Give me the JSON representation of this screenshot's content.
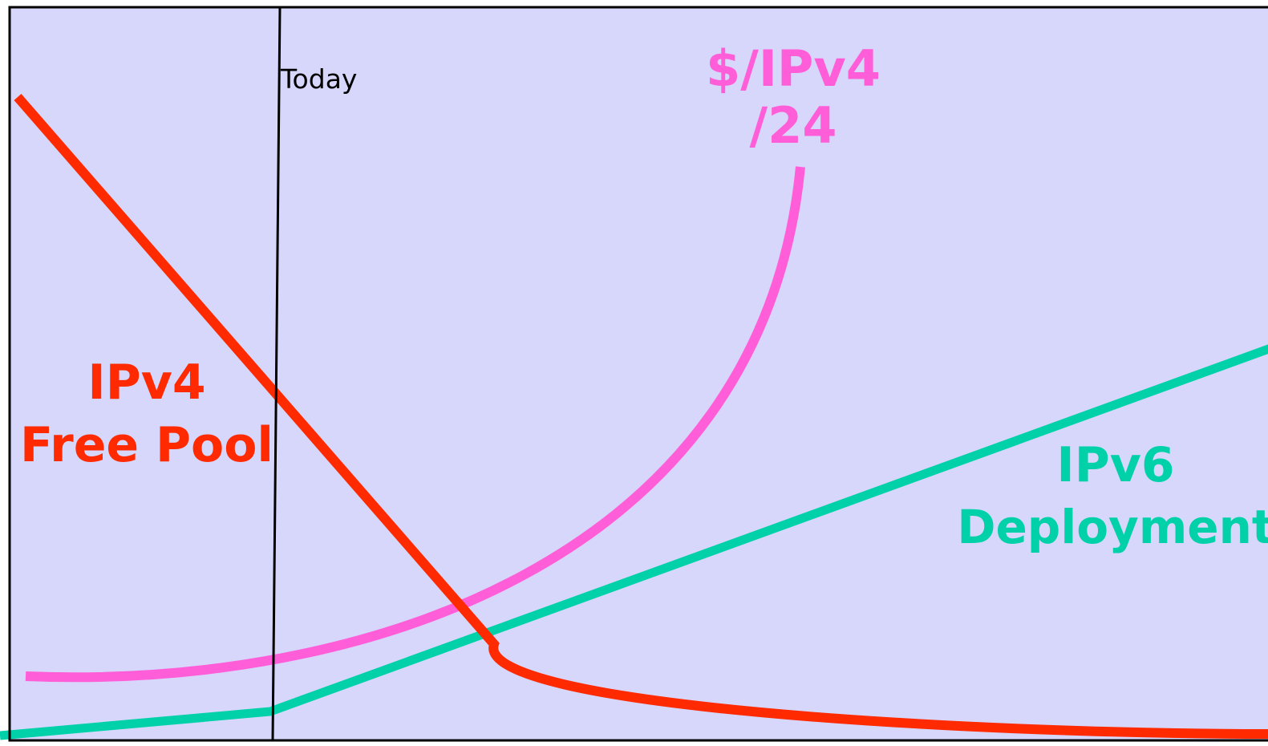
{
  "diagram": {
    "background_color": "#d6d7fb",
    "frame_color": "#000000",
    "today_label": "Today",
    "curves": {
      "ipv4_free_pool": {
        "label_line1": "IPv4",
        "label_line2": "Free Pool",
        "color": "#ff2a00"
      },
      "ipv4_price": {
        "label_line1": "$/IPv4",
        "label_line2": "/24",
        "color": "#ff5ed8"
      },
      "ipv6_deployment": {
        "label_line1": "IPv6",
        "label_line2": "Deployment",
        "color": "#00d1a8"
      }
    }
  }
}
